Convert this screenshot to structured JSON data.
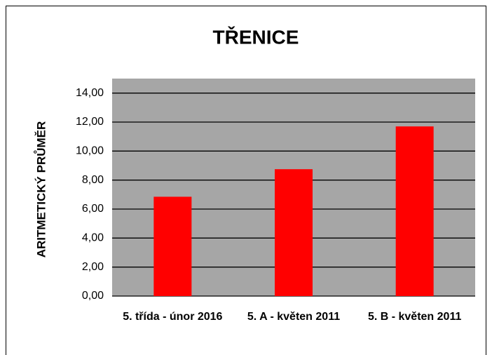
{
  "chart_data": {
    "type": "bar",
    "title": "TŘENICE",
    "y_label": "ARITMETICKÝ PRŮMĚR",
    "categories": [
      "5. třída - únor 2016",
      "5. A - květen 2011",
      "5. B - květen 2011"
    ],
    "values": [
      6.85,
      8.75,
      11.7
    ],
    "color": "#ff0000",
    "ylim": [
      0,
      15
    ],
    "yticks": [
      {
        "value": 0,
        "label": "0,00"
      },
      {
        "value": 2,
        "label": "2,00"
      },
      {
        "value": 4,
        "label": "4,00"
      },
      {
        "value": 6,
        "label": "6,00"
      },
      {
        "value": 8,
        "label": "8,00"
      },
      {
        "value": 10,
        "label": "10,00"
      },
      {
        "value": 12,
        "label": "12,00"
      },
      {
        "value": 14,
        "label": "14,00"
      }
    ],
    "grid": true
  }
}
